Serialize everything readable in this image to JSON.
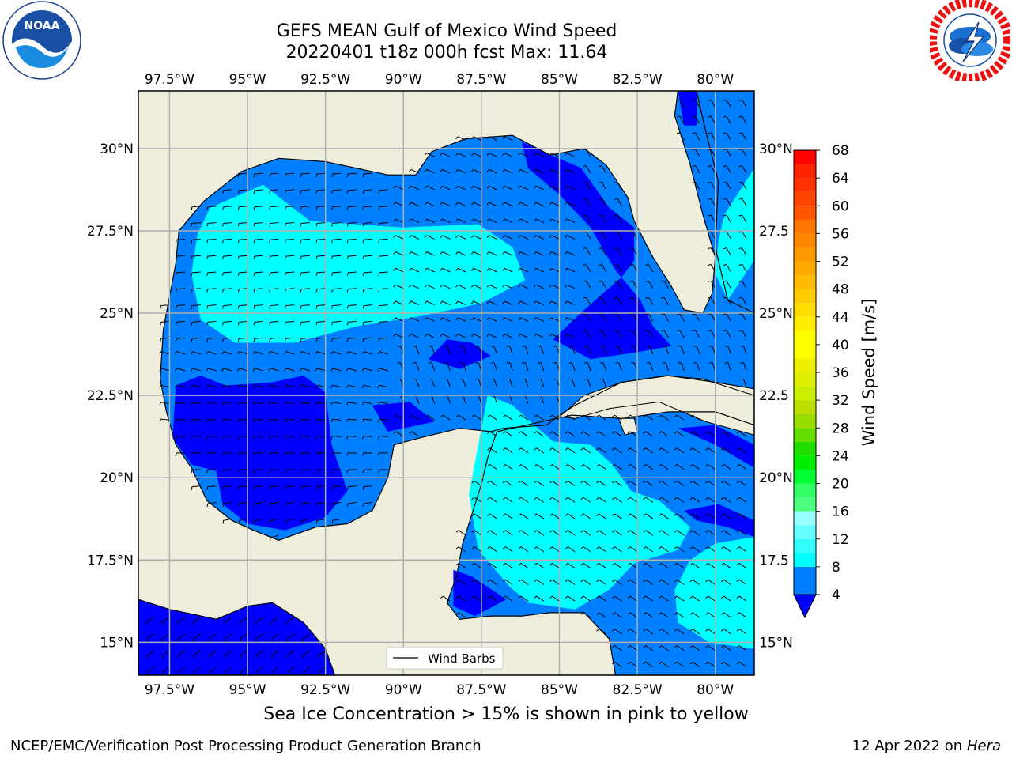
{
  "title": {
    "line1": "GEFS MEAN Gulf of Mexico Wind Speed",
    "line2": "20220401 t18z 000h fcst   Max: 11.64"
  },
  "logos": {
    "left": "noaa-logo",
    "left_text": "NOAA",
    "right": "nws-logo"
  },
  "map": {
    "projection": "PlateCarree",
    "lon_range": [
      -98.5,
      -78.75
    ],
    "lat_range": [
      14.0,
      31.75
    ],
    "lon_ticks": [
      "97.5°W",
      "95°W",
      "92.5°W",
      "90°W",
      "87.5°W",
      "85°W",
      "82.5°W",
      "80°W"
    ],
    "lon_tick_values": [
      -97.5,
      -95,
      -92.5,
      -90,
      -87.5,
      -85,
      -82.5,
      -80
    ],
    "lat_ticks_left": [
      "30°N",
      "27.5°N",
      "25°N",
      "22.5°N",
      "20°N",
      "17.5°N",
      "15°N"
    ],
    "lat_ticks_right": [
      "30°N",
      "27.5",
      "25°N",
      "22.5",
      "20°N",
      "17.5",
      "15°N"
    ],
    "lat_tick_values": [
      30,
      27.5,
      25,
      22.5,
      20,
      17.5,
      15
    ],
    "land_color": "#efeedd",
    "grid_color": "#b0b0b0",
    "legend_label": "Wind Barbs",
    "barb_color": "#000000"
  },
  "colorbar": {
    "label": "Wind Speed [m/s]",
    "ticks": [
      "68",
      "64",
      "60",
      "56",
      "52",
      "48",
      "44",
      "40",
      "36",
      "32",
      "28",
      "24",
      "20",
      "16",
      "12",
      "8",
      "4"
    ],
    "levels": [
      4,
      8,
      10,
      12,
      14,
      16,
      18,
      20,
      22,
      24,
      26,
      28,
      30,
      32,
      34,
      36,
      38,
      40,
      42,
      44,
      46,
      48,
      50,
      52,
      54,
      56,
      58,
      60,
      62,
      64,
      66,
      68
    ],
    "colors": [
      "#0080ff",
      "#00ffff",
      "#33ffff",
      "#66ffff",
      "#99ffff",
      "#4dff80",
      "#33ff66",
      "#00ff33",
      "#00ee00",
      "#22dd00",
      "#66dd00",
      "#99dd00",
      "#bbdd00",
      "#ccee00",
      "#ddee00",
      "#eeee00",
      "#ffff00",
      "#ffff00",
      "#ffee00",
      "#ffdd00",
      "#ffcc00",
      "#ffbb00",
      "#ffaa00",
      "#ff9900",
      "#ff8800",
      "#ff7700",
      "#ff5500",
      "#ff4400",
      "#ff3300",
      "#ff2200",
      "#ff0000"
    ],
    "under_color": "#0000ff"
  },
  "chart_data": {
    "type": "heatmap",
    "title": "GEFS MEAN Gulf of Mexico Wind Speed",
    "subtitle": "20220401 t18z 000h fcst   Max: 11.64",
    "variable": "Wind Speed [m/s]",
    "max": 11.64,
    "regions": [
      {
        "level": "8-10",
        "area": "western Gulf of Mexico (~26°N, 94°W)"
      },
      {
        "level": "8-10",
        "area": "northwestern Caribbean (~19°N, 85°W)"
      },
      {
        "level": "8-10",
        "area": "southeastern Caribbean (~16.5°N, 80°W)"
      },
      {
        "level": "8-10",
        "area": "Florida Straits / Bahamas (~27°N, 79.5°W)"
      },
      {
        "level": "4-8",
        "area": "central and eastern Gulf"
      },
      {
        "level": "<4",
        "area": "Bay of Campeche (~21°N, 94°W)"
      },
      {
        "level": "<4",
        "area": "off west Florida coast (~28°N, 83.5°W)"
      },
      {
        "level": "<4",
        "area": "Gulf of Honduras (~16°N, 87.5°W)"
      },
      {
        "level": "<4",
        "area": "Gulf of Tehuantepec Pacific side (~15°N, 95°W)"
      }
    ]
  },
  "caption": "Sea Ice Concentration > 15% is shown in pink to yellow",
  "footer": {
    "left": "NCEP/EMC/Verification Post Processing Product Generation Branch",
    "right_date": "12 Apr 2022 on ",
    "right_host": "Hera"
  }
}
